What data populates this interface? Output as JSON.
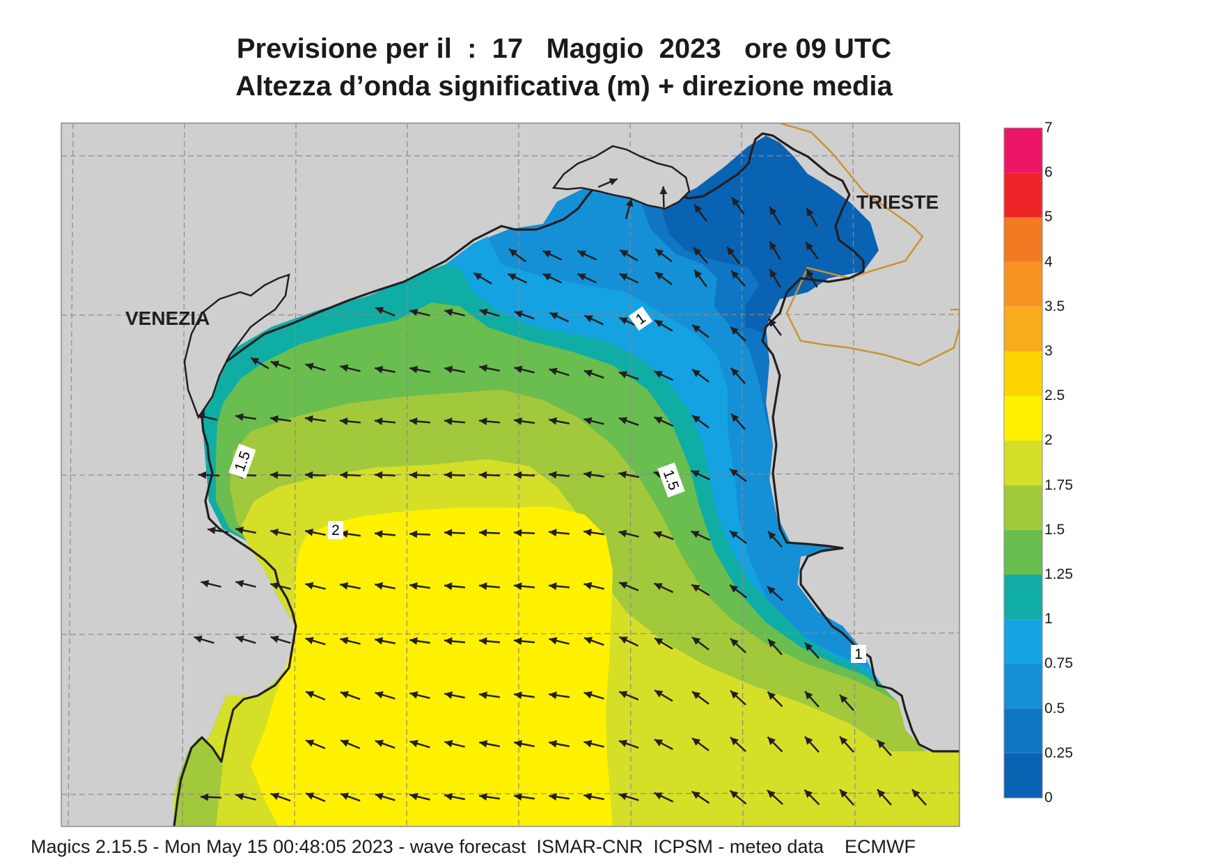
{
  "title": {
    "line1": "Previsione per il  :  17   Maggio  2023   ore 09 UTC",
    "line2": "Altezza d’onda significativa (m) + direzione media"
  },
  "footer": "Magics 2.15.5 - Mon May 15 00:48:05 2023 - wave forecast  ISMAR-CNR  ICPSM - meteo data    ECMWF",
  "places": [
    {
      "name": "VENEZIA"
    },
    {
      "name": "TRIESTE"
    }
  ],
  "contour_labels": [
    "1",
    "1.5",
    "1.5",
    "2",
    "1"
  ],
  "colorbar": {
    "ticks": [
      "7",
      "6",
      "5",
      "4",
      "3.5",
      "3",
      "2.5",
      "2",
      "1.75",
      "1.5",
      "1.25",
      "1",
      "0.75",
      "0.5",
      "0.25",
      "0"
    ],
    "bands": [
      {
        "from": 0,
        "to": 0.25,
        "color": "#0a62b3"
      },
      {
        "from": 0.25,
        "to": 0.5,
        "color": "#0e76c4"
      },
      {
        "from": 0.5,
        "to": 0.75,
        "color": "#1590d6"
      },
      {
        "from": 0.75,
        "to": 1,
        "color": "#14a2e2"
      },
      {
        "from": 1,
        "to": 1.25,
        "color": "#10ada4"
      },
      {
        "from": 1.25,
        "to": 1.5,
        "color": "#6abd4f"
      },
      {
        "from": 1.5,
        "to": 1.75,
        "color": "#a2c93b"
      },
      {
        "from": 1.75,
        "to": 2,
        "color": "#d5df27"
      },
      {
        "from": 2,
        "to": 2.5,
        "color": "#fff100"
      },
      {
        "from": 2.5,
        "to": 3,
        "color": "#fcd400"
      },
      {
        "from": 3,
        "to": 3.5,
        "color": "#f8ac1c"
      },
      {
        "from": 3.5,
        "to": 4,
        "color": "#f79421"
      },
      {
        "from": 4,
        "to": 5,
        "color": "#f37a23"
      },
      {
        "from": 5,
        "to": 6,
        "color": "#ee2528"
      },
      {
        "from": 6,
        "to": 7,
        "color": "#ec1566"
      }
    ]
  },
  "colors": {
    "land": "#cfcfd0",
    "coast": "#231f20",
    "border": "#c8942e",
    "grid": "#8a8a8a",
    "arrow": "#231f20"
  }
}
